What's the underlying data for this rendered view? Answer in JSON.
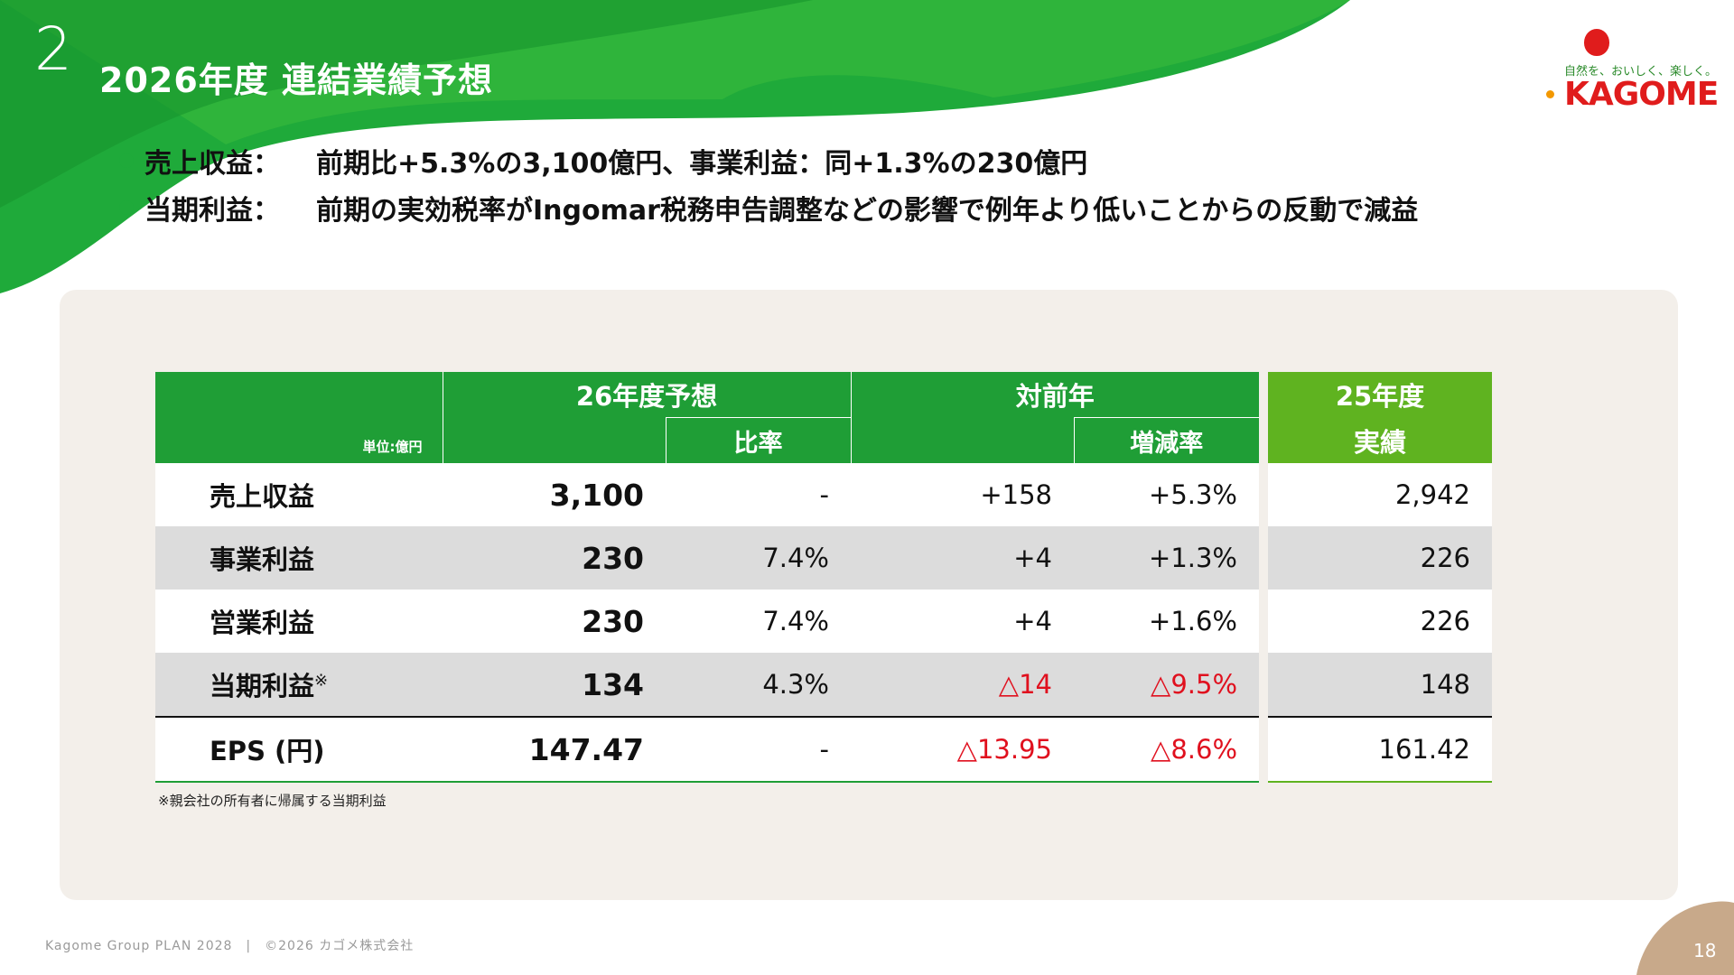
{
  "header": {
    "section_number": "2",
    "title": "2026年度 連結業績予想"
  },
  "logo": {
    "tagline": "自然を、おいしく、楽しく。",
    "wordmark": "KAGOME"
  },
  "bullets": [
    {
      "label": "売上収益：",
      "text": "前期比+5.3%の3,100億円、事業利益：同+1.3%の230億円"
    },
    {
      "label": "当期利益：",
      "text": "前期の実効税率がIngomar税務申告調整などの影響で例年より低いことからの反動で減益"
    }
  ],
  "table": {
    "unit_label": "単位:億円",
    "col_forecast": "26年度予想",
    "col_ratio": "比率",
    "col_yoy": "対前年",
    "col_change_rate": "増減率",
    "col_actual_line1": "25年度",
    "col_actual_line2": "実績",
    "rows": [
      {
        "name": "売上収益",
        "forecast": "3,100",
        "ratio": "-",
        "yoy": "+158",
        "rate": "+5.3%",
        "actual": "2,942"
      },
      {
        "name": "事業利益",
        "forecast": "230",
        "ratio": "7.4%",
        "yoy": "+4",
        "rate": "+1.3%",
        "actual": "226"
      },
      {
        "name": "営業利益",
        "forecast": "230",
        "ratio": "7.4%",
        "yoy": "+4",
        "rate": "+1.6%",
        "actual": "226"
      },
      {
        "name": "当期利益",
        "name_mark": "※",
        "forecast": "134",
        "ratio": "4.3%",
        "yoy": "△14",
        "rate": "△9.5%",
        "actual": "148"
      },
      {
        "name": "EPS (円)",
        "forecast": "147.47",
        "ratio": "-",
        "yoy": "△13.95",
        "rate": "△8.6%",
        "actual": "161.42"
      }
    ]
  },
  "note": "※親会社の所有者に帰属する当期利益",
  "footer": {
    "text": "Kagome Group PLAN 2028　|　©2026 カゴメ株式会社",
    "page_number": "18"
  },
  "colors": {
    "brand_green": "#1f9e36",
    "light_green": "#5fb320",
    "negative_red": "#e0101e",
    "panel_beige": "#f3efea",
    "page_tab_brown": "#c8a98a"
  }
}
